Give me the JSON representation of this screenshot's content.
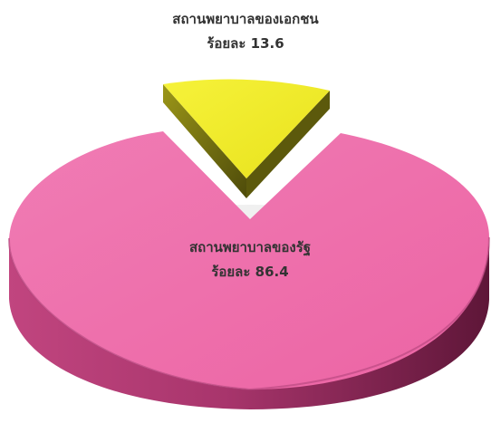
{
  "chart_data": {
    "type": "pie",
    "style": "3d-exploded",
    "slices": [
      {
        "name": "สถานพยาบาลของรัฐ",
        "value_label": "ร้อยละ 86.4",
        "value": 86.4,
        "color": "#EF6CAA",
        "side_color": "#8E2A5C"
      },
      {
        "name": "สถานพยาบาลของเอกชน",
        "value_label": "ร้อยละ 13.6",
        "value": 13.6,
        "color": "#F2EE24",
        "side_color": "#6E6A10",
        "exploded": true
      }
    ]
  }
}
